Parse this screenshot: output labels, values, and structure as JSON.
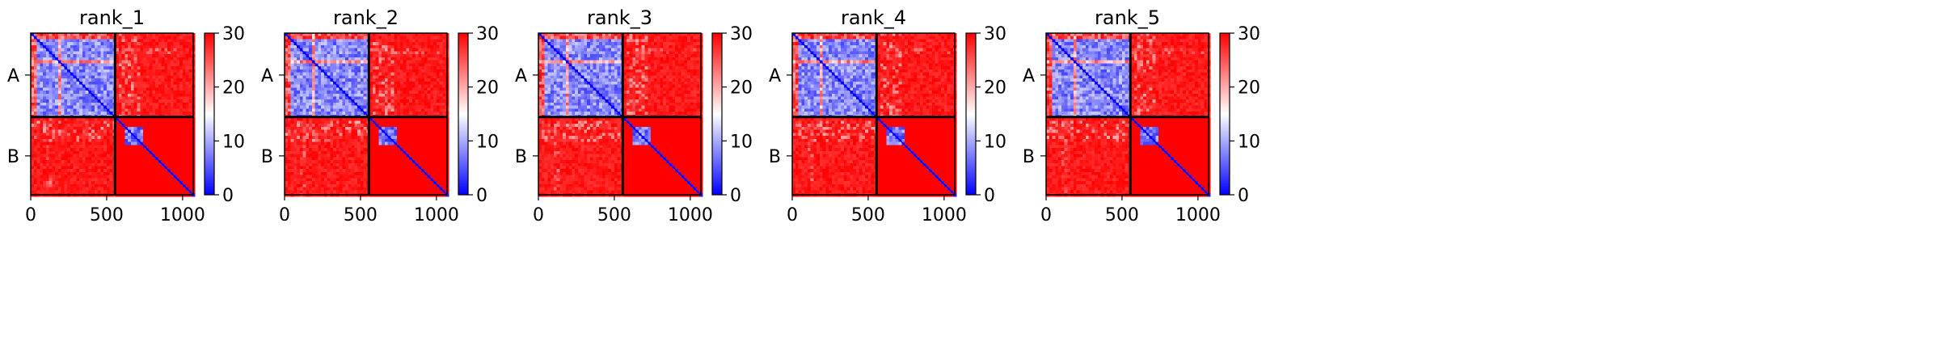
{
  "chart_data": {
    "type": "heatmap",
    "colormap": {
      "name": "bwr",
      "colors": [
        "#0000ff",
        "#ffffff",
        "#ff0000"
      ]
    },
    "vmin": 0,
    "vmax": 30,
    "x_range": [
      0,
      1070
    ],
    "chain_boundary": 555,
    "chains": [
      "A",
      "B"
    ],
    "x_ticks": [
      0,
      500,
      1000
    ],
    "colorbar_ticks": [
      0,
      10,
      20,
      30
    ],
    "panels": [
      {
        "title": "rank_1"
      },
      {
        "title": "rank_2"
      },
      {
        "title": "rank_3"
      },
      {
        "title": "rank_4"
      },
      {
        "title": "rank_5"
      }
    ]
  }
}
